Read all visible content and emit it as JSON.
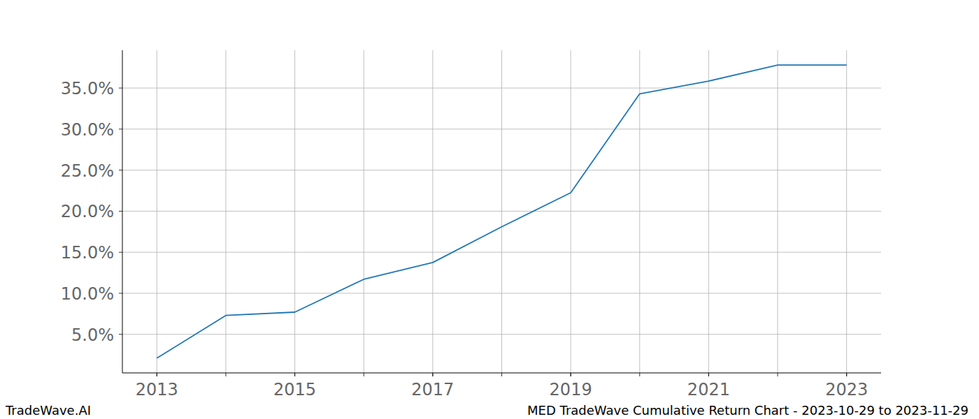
{
  "chart_data": {
    "type": "line",
    "title": "MED TradeWave Cumulative Return Chart - 2023-10-29 to 2023-11-29",
    "source": "TradeWave.AI",
    "x": [
      2013,
      2014,
      2015,
      2016,
      2017,
      2018,
      2019,
      2020,
      2021,
      2022,
      2023
    ],
    "values": [
      2.1,
      7.3,
      7.7,
      11.7,
      13.75,
      18.1,
      22.25,
      34.3,
      35.85,
      37.8,
      37.8
    ],
    "color": "#1f77b4",
    "xlim": [
      2012.5,
      2023.5
    ],
    "xticks": [
      2013,
      2015,
      2017,
      2019,
      2021,
      2023
    ],
    "ylim": [
      0.3,
      39.6
    ],
    "yticks": [
      {
        "value": 5,
        "label": "5.0%"
      },
      {
        "value": 10,
        "label": "10.0%"
      },
      {
        "value": 15,
        "label": "15.0%"
      },
      {
        "value": 20,
        "label": "20.0%"
      },
      {
        "value": 25,
        "label": "25.0%"
      },
      {
        "value": 30,
        "label": "30.0%"
      },
      {
        "value": 35,
        "label": "35.0%"
      }
    ],
    "grid": true
  }
}
